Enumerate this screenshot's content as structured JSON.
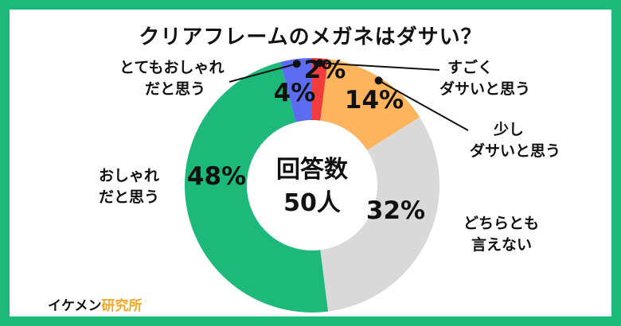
{
  "title": "クリアフレームのメガネはダサい？",
  "center": {
    "line1": "回答数",
    "line2": "50人"
  },
  "brand": {
    "part1": "イケメン",
    "part2": "研究所"
  },
  "colors": {
    "frame": "#1db97a"
  },
  "chart_data": {
    "type": "pie",
    "title": "クリアフレームのメガネはダサい？",
    "categories": [
      "すごくダサいと思う",
      "少しダサいと思う",
      "どちらとも言えない",
      "おしゃれだと思う",
      "とてもおしゃれだと思う"
    ],
    "values": [
      2,
      14,
      32,
      48,
      4
    ],
    "value_labels": [
      "2%",
      "14%",
      "32%",
      "48%",
      "4%"
    ],
    "slice_labels": [
      {
        "line1": "すごく",
        "line2": "ダサいと思う"
      },
      {
        "line1": "少し",
        "line2": "ダサいと思う"
      },
      {
        "line1": "どちらとも",
        "line2": "言えない"
      },
      {
        "line1": "おしゃれ",
        "line2": "だと思う"
      },
      {
        "line1": "とてもおしゃれ",
        "line2": "だと思う"
      }
    ],
    "colors": [
      "#f23b3b",
      "#fdb45c",
      "#d9d9d9",
      "#1db97a",
      "#5b6cf0"
    ],
    "donut": true,
    "total_respondents": "50人"
  }
}
